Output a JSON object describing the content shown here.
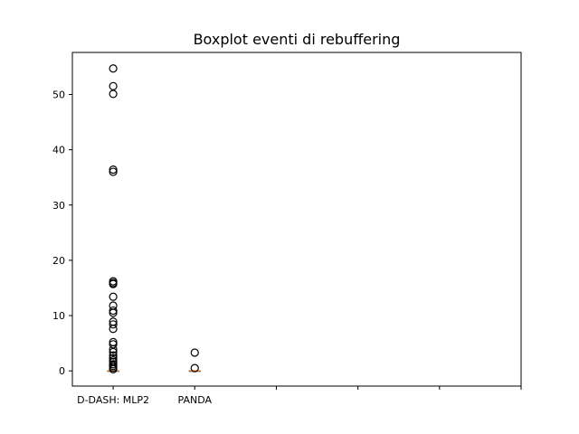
{
  "chart_data": {
    "type": "boxplot",
    "title": "Boxplot eventi di rebuffering",
    "xlabel": "",
    "ylabel": "",
    "ylim": [
      -2.75,
      57.6
    ],
    "yticks": [
      0,
      10,
      20,
      30,
      40,
      50
    ],
    "categories": [
      "D-DASH: MLP2",
      "PANDA",
      "",
      "",
      "",
      ""
    ],
    "grid": false,
    "colors": {
      "median": "#ff7f0e",
      "outlier": "#000000",
      "axes": "#000000"
    },
    "series": [
      {
        "category": "D-DASH: MLP2",
        "q1": 0,
        "median": 0,
        "q3": 0,
        "whisker_low": 0,
        "whisker_high": 0,
        "outliers": [
          54.7,
          51.5,
          50.1,
          36.4,
          36.0,
          16.2,
          15.9,
          15.7,
          13.4,
          11.8,
          10.9,
          10.5,
          8.9,
          8.4,
          7.6,
          5.2,
          4.8,
          3.9,
          3.4,
          2.8,
          2.3,
          1.9,
          1.6,
          1.2,
          0.9,
          0.6,
          0.3
        ]
      },
      {
        "category": "PANDA",
        "q1": 0,
        "median": 0,
        "q3": 0,
        "whisker_low": 0,
        "whisker_high": 0,
        "outliers": [
          3.3,
          0.5
        ]
      }
    ]
  }
}
